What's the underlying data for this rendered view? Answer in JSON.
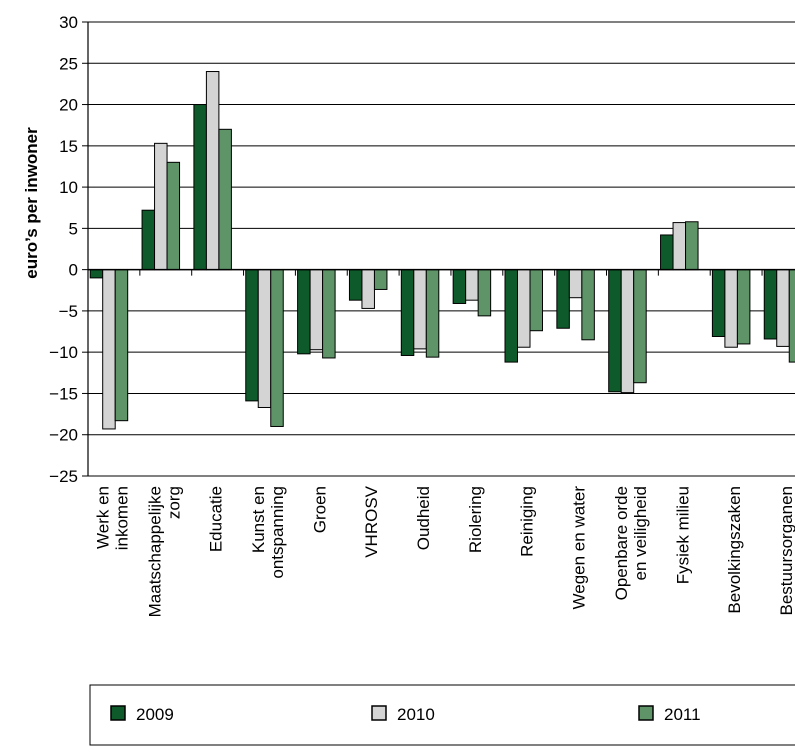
{
  "chart_data": {
    "type": "bar",
    "title": "",
    "xlabel": "",
    "ylabel": "euro’s per inwoner",
    "ylim": [
      -25,
      30
    ],
    "yticks": [
      30,
      25,
      20,
      15,
      10,
      5,
      0,
      -5,
      -10,
      -15,
      -20,
      -25
    ],
    "ytick_labels": [
      "30",
      "25",
      "20",
      "15",
      "10",
      "5",
      "0",
      "−5",
      "−10",
      "−15",
      "−20",
      "−25"
    ],
    "grid": true,
    "legend_position": "bottom",
    "categories": [
      [
        "Werk en",
        "inkomen"
      ],
      [
        "Maatschappelijke",
        "zorg"
      ],
      [
        "Educatie"
      ],
      [
        "Kunst en",
        "ontspanning"
      ],
      [
        "Groen"
      ],
      [
        "VHROSV"
      ],
      [
        "Oudheid"
      ],
      [
        "Riolering"
      ],
      [
        "Reiniging"
      ],
      [
        "Wegen en water"
      ],
      [
        "Openbare orde",
        "en veiligheid"
      ],
      [
        "Fysiek milieu"
      ],
      [
        "Bevolkingszaken"
      ],
      [
        "Bestuursorganen"
      ]
    ],
    "series": [
      {
        "name": "2009",
        "color": "#0f5a2a",
        "values": [
          -1.0,
          7.2,
          20.0,
          -15.9,
          -10.2,
          -3.7,
          -10.4,
          -4.1,
          -11.2,
          -7.1,
          -14.8,
          4.2,
          -8.1,
          -8.4
        ]
      },
      {
        "name": "2010",
        "color": "#d4d4d4",
        "values": [
          -19.3,
          15.3,
          24.0,
          -16.7,
          -9.7,
          -4.7,
          -9.6,
          -3.7,
          -9.4,
          -3.4,
          -14.9,
          5.7,
          -9.4,
          -9.3
        ]
      },
      {
        "name": "2011",
        "color": "#5e9468",
        "values": [
          -18.3,
          13.0,
          17.0,
          -19.0,
          -10.7,
          -2.4,
          -10.6,
          -5.6,
          -7.4,
          -8.5,
          -13.7,
          5.8,
          -9.0,
          -11.2
        ]
      }
    ]
  }
}
